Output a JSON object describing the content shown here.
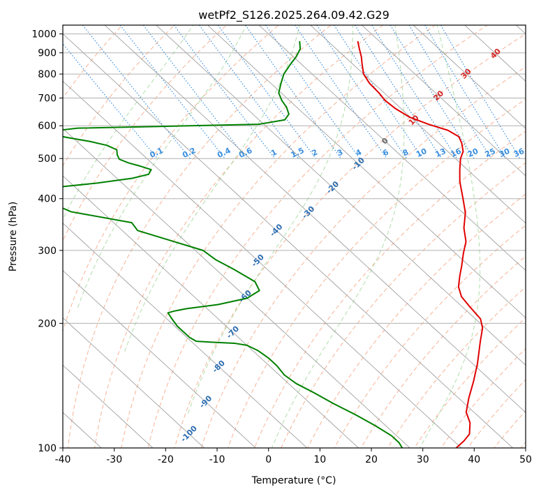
{
  "chart_data": {
    "type": "line",
    "subtype": "skew-t log-p",
    "title": "wetPf2_S126.2025.264.09.42.G29",
    "xlabel": "Temperature (°C)",
    "ylabel": "Pressure (hPa)",
    "xlim": [
      -40,
      50
    ],
    "ylim": [
      1050,
      100
    ],
    "y_scale": "log",
    "x_ticks": [
      -40,
      -30,
      -20,
      -10,
      0,
      10,
      20,
      30,
      40,
      50
    ],
    "y_ticks": [
      1000,
      900,
      800,
      700,
      600,
      500,
      400,
      300,
      200,
      100
    ],
    "grid": true,
    "colors": {
      "temperature": "#e00000",
      "dewpoint": "#008000",
      "isotherm": "#a0a0a0",
      "dry_adiabat": "#f4a582",
      "moist_adiabat": "#a6d9a0",
      "mixing_ratio": "#3a8fe0",
      "isotherm_label_neg": "#2b6cb0",
      "isotherm_label_pos": "#d62728"
    },
    "isotherm_labels": [
      {
        "t": -100,
        "p": 108
      },
      {
        "t": -90,
        "p": 129
      },
      {
        "t": -80,
        "p": 157
      },
      {
        "t": -70,
        "p": 190
      },
      {
        "t": -60,
        "p": 232
      },
      {
        "t": -50,
        "p": 283
      },
      {
        "t": -40,
        "p": 335
      },
      {
        "t": -30,
        "p": 370
      },
      {
        "t": -20,
        "p": 425
      },
      {
        "t": -10,
        "p": 485
      },
      {
        "t": 0,
        "p": 550
      },
      {
        "t": 10,
        "p": 618
      },
      {
        "t": 20,
        "p": 708
      },
      {
        "t": 30,
        "p": 800
      },
      {
        "t": 40,
        "p": 895
      }
    ],
    "mixing_ratio_labels": [
      "0.1",
      "0.2",
      "0.4",
      "0.6",
      "1",
      "1.5",
      "2",
      "3",
      "4",
      "6",
      "8",
      "10",
      "13",
      "16",
      "20",
      "25",
      "30",
      "36"
    ],
    "mixing_ratio_values": [
      0.1,
      0.2,
      0.4,
      0.6,
      1,
      1.5,
      2,
      3,
      4,
      6,
      8,
      10,
      13,
      16,
      20,
      25,
      30,
      36
    ],
    "series": [
      {
        "role": "temperature",
        "points": [
          [
            960,
            15.8
          ],
          [
            920,
            14.5
          ],
          [
            880,
            13.2
          ],
          [
            850,
            12.0
          ],
          [
            800,
            10.0
          ],
          [
            760,
            9.2
          ],
          [
            720,
            9.0
          ],
          [
            690,
            8.6
          ],
          [
            660,
            8.9
          ],
          [
            630,
            9.8
          ],
          [
            605,
            12.0
          ],
          [
            585,
            14.5
          ],
          [
            565,
            15.3
          ],
          [
            545,
            14.5
          ],
          [
            520,
            13.0
          ],
          [
            500,
            11.0
          ],
          [
            470,
            8.5
          ],
          [
            440,
            6.0
          ],
          [
            400,
            3.0
          ],
          [
            370,
            0.5
          ],
          [
            340,
            -3.0
          ],
          [
            315,
            -5.5
          ],
          [
            295,
            -8.5
          ],
          [
            275,
            -11.5
          ],
          [
            260,
            -14.0
          ],
          [
            245,
            -16.5
          ],
          [
            232,
            -18.0
          ],
          [
            220,
            -18.5
          ],
          [
            205,
            -19.0
          ],
          [
            195,
            -20.5
          ],
          [
            180,
            -24.0
          ],
          [
            160,
            -29.0
          ],
          [
            145,
            -33.5
          ],
          [
            132,
            -38.0
          ],
          [
            122,
            -41.5
          ],
          [
            115,
            -43.0
          ],
          [
            108,
            -45.5
          ],
          [
            104,
            -48.0
          ],
          [
            100,
            -51.0
          ]
        ]
      },
      {
        "role": "dewpoint",
        "points": [
          [
            960,
            4.5
          ],
          [
            920,
            3.0
          ],
          [
            880,
            0.5
          ],
          [
            840,
            -2.5
          ],
          [
            800,
            -5.5
          ],
          [
            760,
            -8.0
          ],
          [
            720,
            -10.5
          ],
          [
            690,
            -11.5
          ],
          [
            665,
            -12.0
          ],
          [
            640,
            -13.0
          ],
          [
            620,
            -15.0
          ],
          [
            605,
            -21.0
          ],
          [
            598,
            -40.0
          ],
          [
            592,
            -57.0
          ],
          [
            582,
            -63.0
          ],
          [
            572,
            -63.5
          ],
          [
            562,
            -61.0
          ],
          [
            550,
            -57.5
          ],
          [
            538,
            -55.0
          ],
          [
            525,
            -54.0
          ],
          [
            510,
            -55.0
          ],
          [
            498,
            -55.5
          ],
          [
            488,
            -54.5
          ],
          [
            480,
            -53.0
          ],
          [
            470,
            -51.5
          ],
          [
            458,
            -53.0
          ],
          [
            448,
            -57.0
          ],
          [
            436,
            -65.0
          ],
          [
            428,
            -72.0
          ],
          [
            420,
            -77.0
          ],
          [
            415,
            -79.0
          ],
          [
            400,
            -79.0
          ],
          [
            372,
            -76.0
          ],
          [
            350,
            -66.5
          ],
          [
            335,
            -67.0
          ],
          [
            318,
            -63.0
          ],
          [
            300,
            -58.5
          ],
          [
            285,
            -58.0
          ],
          [
            270,
            -56.5
          ],
          [
            252,
            -55.0
          ],
          [
            240,
            -56.0
          ],
          [
            230,
            -60.0
          ],
          [
            222,
            -67.0
          ],
          [
            217,
            -74.0
          ],
          [
            214,
            -77.0
          ],
          [
            212,
            -78.5
          ],
          [
            205,
            -79.0
          ],
          [
            197,
            -79.5
          ],
          [
            185,
            -79.5
          ],
          [
            181,
            -79.0
          ],
          [
            180,
            -76.0
          ],
          [
            179,
            -72.0
          ],
          [
            177,
            -70.0
          ],
          [
            172,
            -69.0
          ],
          [
            165,
            -68.5
          ],
          [
            158,
            -68.5
          ],
          [
            150,
            -69.0
          ],
          [
            143,
            -68.5
          ],
          [
            136,
            -67.0
          ],
          [
            128,
            -65.5
          ],
          [
            120,
            -63.5
          ],
          [
            113,
            -62.0
          ],
          [
            107,
            -61.0
          ],
          [
            103,
            -61.0
          ],
          [
            100,
            -61.5
          ]
        ]
      }
    ]
  }
}
